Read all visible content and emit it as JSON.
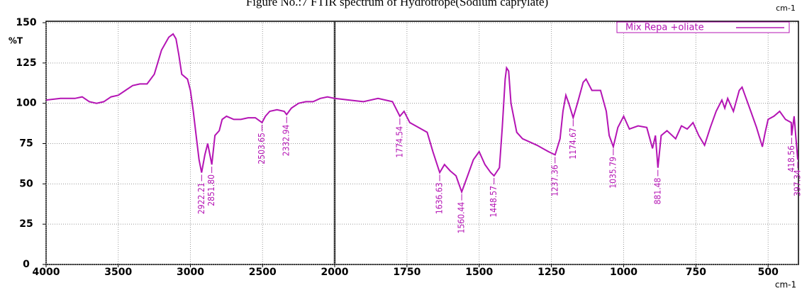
{
  "chart_data": {
    "type": "line",
    "title": "Figure No.:7 FTIR spectrum of Hydrotrope(Sodium caprylate)",
    "x_label": "cm-1",
    "x_label_top": "cm-1",
    "y_label": "%T",
    "x": [
      4000,
      3900,
      3800,
      3750,
      3700,
      3650,
      3600,
      3550,
      3500,
      3450,
      3400,
      3350,
      3300,
      3250,
      3200,
      3150,
      3120,
      3100,
      3080,
      3060,
      3020,
      3000,
      2980,
      2960,
      2940,
      2922.21,
      2900,
      2880,
      2851.8,
      2830,
      2800,
      2780,
      2750,
      2700,
      2650,
      2600,
      2550,
      2503.65,
      2480,
      2450,
      2400,
      2350,
      2332.94,
      2300,
      2250,
      2200,
      2150,
      2100,
      2050,
      2000,
      1950,
      1900,
      1850,
      1800,
      1774.54,
      1760,
      1740,
      1700,
      1680,
      1660,
      1636.63,
      1620,
      1600,
      1580,
      1560.44,
      1540,
      1520,
      1500,
      1480,
      1460,
      1448.57,
      1430,
      1420,
      1410,
      1405,
      1398,
      1390,
      1370,
      1350,
      1300,
      1260,
      1237.36,
      1220,
      1210,
      1200,
      1190,
      1174.67,
      1160,
      1140,
      1130,
      1110,
      1080,
      1060,
      1050,
      1035.79,
      1020,
      1000,
      980,
      950,
      920,
      900,
      890,
      881.48,
      870,
      850,
      820,
      800,
      780,
      760,
      740,
      720,
      700,
      680,
      660,
      650,
      640,
      620,
      600,
      590,
      580,
      560,
      540,
      520,
      510,
      500,
      480,
      460,
      440,
      420,
      418.56,
      410,
      397.34
    ],
    "series": [
      {
        "name": "Mix Repa +oliate",
        "color": "#b414b4",
        "values": [
          102,
          103,
          103,
          104,
          101,
          100,
          101,
          104,
          105,
          108,
          111,
          112,
          112,
          118,
          133,
          141,
          143,
          140,
          130,
          118,
          115,
          108,
          95,
          80,
          65,
          57,
          68,
          75,
          62,
          80,
          83,
          90,
          92,
          90,
          90,
          91,
          91,
          88,
          92,
          95,
          96,
          95,
          93,
          97,
          100,
          101,
          101,
          103,
          104,
          103,
          102,
          101,
          103,
          101,
          92,
          95,
          88,
          84,
          82,
          70,
          57,
          62,
          58,
          55,
          45,
          55,
          65,
          70,
          62,
          57,
          55,
          60,
          85,
          115,
          122,
          120,
          100,
          82,
          78,
          74,
          70,
          68,
          78,
          95,
          105,
          100,
          91,
          100,
          113,
          115,
          108,
          108,
          95,
          80,
          73,
          85,
          92,
          84,
          86,
          85,
          72,
          80,
          60,
          80,
          83,
          78,
          86,
          84,
          88,
          80,
          74,
          85,
          95,
          102,
          97,
          103,
          95,
          108,
          110,
          105,
          95,
          85,
          73,
          82,
          90,
          92,
          95,
          90,
          88,
          80,
          92,
          65
        ]
      }
    ],
    "xlim": [
      4000,
      395
    ],
    "x_scale_break": 2000,
    "xticks": [
      4000,
      3500,
      3000,
      2500,
      2000,
      1750,
      1500,
      1250,
      1000,
      750,
      500
    ],
    "ylim": [
      0,
      150
    ],
    "yticks": [
      0,
      25,
      50,
      75,
      100,
      125,
      150
    ],
    "grid": true,
    "legend": "top-right",
    "peak_labels": [
      {
        "value": 2922.21,
        "label": "2922.21"
      },
      {
        "value": 2851.8,
        "label": "2851.80"
      },
      {
        "value": 2503.65,
        "label": "2503.65"
      },
      {
        "value": 2332.94,
        "label": "2332.94"
      },
      {
        "value": 1774.54,
        "label": "1774.54"
      },
      {
        "value": 1636.63,
        "label": "1636.63"
      },
      {
        "value": 1560.44,
        "label": "1560.44"
      },
      {
        "value": 1448.57,
        "label": "1448.57"
      },
      {
        "value": 1237.36,
        "label": "1237.36"
      },
      {
        "value": 1174.67,
        "label": "1174.67"
      },
      {
        "value": 1035.79,
        "label": "1035.79"
      },
      {
        "value": 881.48,
        "label": "881.48"
      },
      {
        "value": 418.56,
        "label": "418.56"
      },
      {
        "value": 397.34,
        "label": "397.34"
      }
    ]
  }
}
